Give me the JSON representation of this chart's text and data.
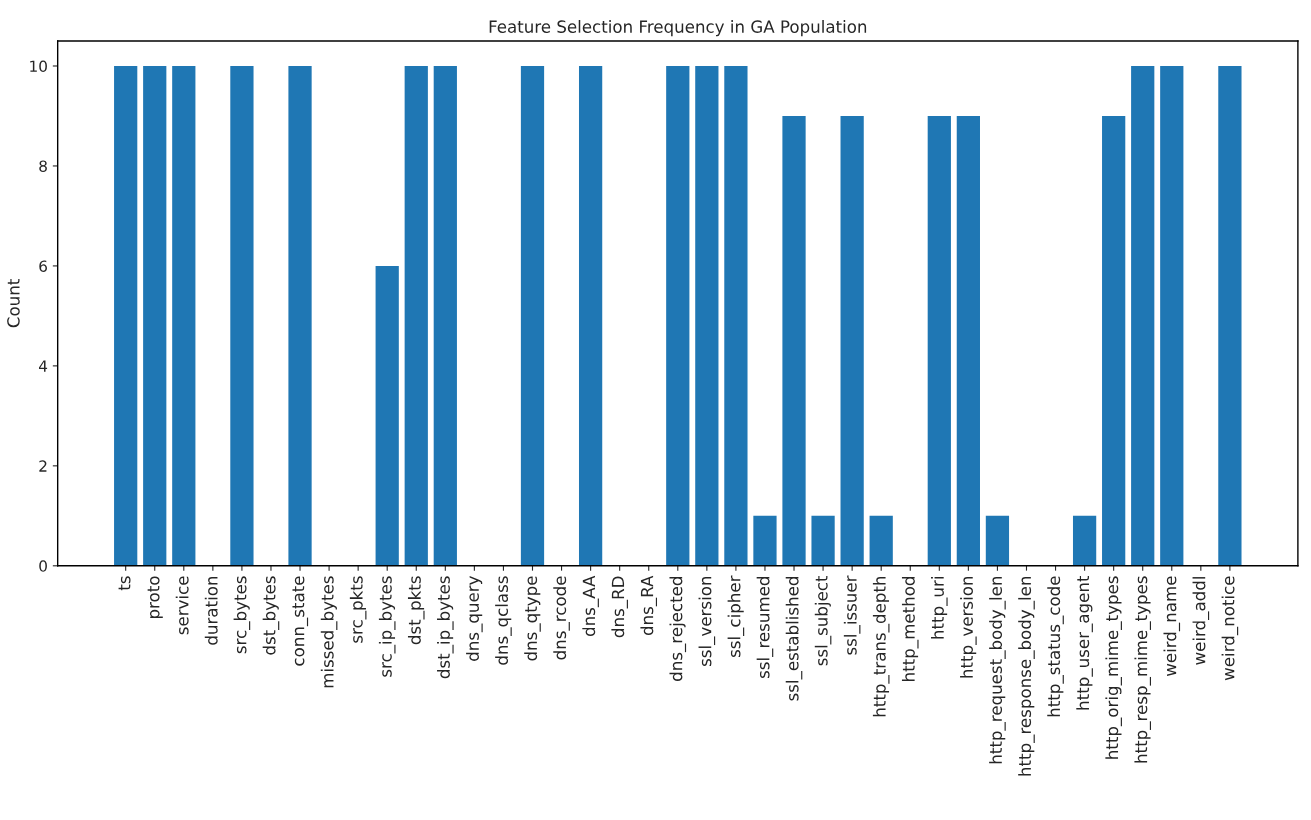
{
  "chart_data": {
    "type": "bar",
    "title": "Feature Selection Frequency in GA Population",
    "ylabel": "Count",
    "categories": [
      "ts",
      "proto",
      "service",
      "duration",
      "src_bytes",
      "dst_bytes",
      "conn_state",
      "missed_bytes",
      "src_pkts",
      "src_ip_bytes",
      "dst_pkts",
      "dst_ip_bytes",
      "dns_query",
      "dns_qclass",
      "dns_qtype",
      "dns_rcode",
      "dns_AA",
      "dns_RD",
      "dns_RA",
      "dns_rejected",
      "ssl_version",
      "ssl_cipher",
      "ssl_resumed",
      "ssl_established",
      "ssl_subject",
      "ssl_issuer",
      "http_trans_depth",
      "http_method",
      "http_uri",
      "http_version",
      "http_request_body_len",
      "http_response_body_len",
      "http_status_code",
      "http_user_agent",
      "http_orig_mime_types",
      "http_resp_mime_types",
      "weird_name",
      "weird_addl",
      "weird_notice"
    ],
    "values": [
      10,
      10,
      10,
      0,
      10,
      0,
      10,
      0,
      0,
      6,
      10,
      10,
      0,
      0,
      10,
      0,
      10,
      0,
      0,
      10,
      10,
      10,
      1,
      9,
      1,
      9,
      1,
      0,
      9,
      9,
      1,
      0,
      0,
      1,
      9,
      10,
      10,
      0,
      10
    ],
    "color": "#1f77b4",
    "ylim": [
      0,
      10.5
    ],
    "yticks": [
      0,
      2,
      4,
      6,
      8,
      10
    ],
    "grid": false,
    "legend": false
  }
}
